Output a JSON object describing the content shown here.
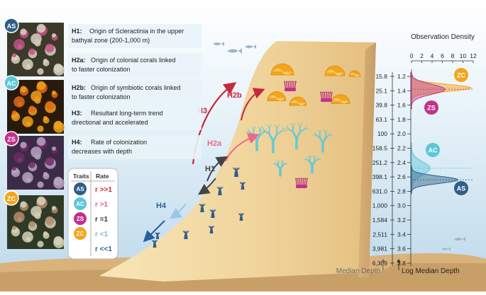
{
  "panels": [
    {
      "badge": "AS",
      "color": "#2f5e88"
    },
    {
      "badge": "AC",
      "color": "#5cc7d8"
    },
    {
      "badge": "ZS",
      "color": "#c2328c"
    },
    {
      "badge": "ZC",
      "color": "#f2a51c"
    }
  ],
  "hypotheses": [
    {
      "label": "H1:",
      "lines": [
        "Origin of Scleractinia in the upper",
        "bathyal zone (200-1,000 m)"
      ]
    },
    {
      "label": "H2a:",
      "lines": [
        "Origin of colonial corals linked",
        "to faster colonization"
      ]
    },
    {
      "label": "H2b:",
      "lines": [
        "Origin of symbiotic corals linked",
        "to faster colonization"
      ]
    },
    {
      "label": "H3:",
      "lines": [
        "Resultant long-term trend",
        "directional and accelerated"
      ]
    },
    {
      "label": "H4:",
      "lines": [
        "Rate of colonization",
        "decreases with depth"
      ]
    }
  ],
  "traits_table": {
    "header_traits": "Traits",
    "header_rate": "Rate",
    "rows": [
      {
        "badge": "AS",
        "rate": "r >>1",
        "rate_color": "#cc2a35",
        "badge_color": "#2f5e88"
      },
      {
        "badge": "AC",
        "rate": "r >1",
        "rate_color": "#e8607a",
        "badge_color": "#5cc7d8"
      },
      {
        "badge": "ZS",
        "rate": "r =1",
        "rate_color": "#333333",
        "badge_color": "#c2328c"
      },
      {
        "badge": "ZC",
        "rate": "r <1",
        "rate_color": "#7fb3d8",
        "badge_color": "#f2a51c"
      },
      {
        "badge": "",
        "rate": "r <<1",
        "rate_color": "#2a5f9c",
        "badge_color": ""
      }
    ]
  },
  "arrow_labels": {
    "h1": "H1",
    "h2a": "H2a",
    "h2b": "H2b",
    "h3": "H3",
    "h4": "H4"
  },
  "depth_scale": {
    "median_depths": [
      "15.8",
      "25.1",
      "39.8",
      "63.1",
      "100",
      "158.5",
      "251.2",
      "398.1",
      "631.0",
      "1,000",
      "1,584",
      "2,511",
      "3,981",
      "6,309"
    ],
    "log_depths": [
      "1.2",
      "1.4",
      "1.6",
      "1.8",
      "2.0",
      "2.2",
      "2.4",
      "2.6",
      "2.8",
      "3.0",
      "3.2",
      "3.4",
      "3.6",
      "3.8"
    ],
    "median_label": "Median Depth",
    "log_label": "Log Median Depth"
  },
  "density": {
    "title": "Observation Density",
    "ticks": [
      "0",
      "2",
      "4",
      "6",
      "8",
      "10",
      "12"
    ],
    "max": 12,
    "curves": [
      {
        "name": "ZC",
        "peak_log_depth": 1.36,
        "peak_density": 11.5,
        "color": "#f2a51c"
      },
      {
        "name": "ZS",
        "peak_log_depth": 1.38,
        "peak_density": 6.5,
        "color": "#c2328c"
      },
      {
        "name": "AC",
        "peak_log_depth": 2.48,
        "peak_density": 3.6,
        "color": "#5cc7d8"
      },
      {
        "name": "AS",
        "peak_log_depth": 2.64,
        "peak_density": 9.0,
        "color": "#2f5e88"
      }
    ]
  }
}
